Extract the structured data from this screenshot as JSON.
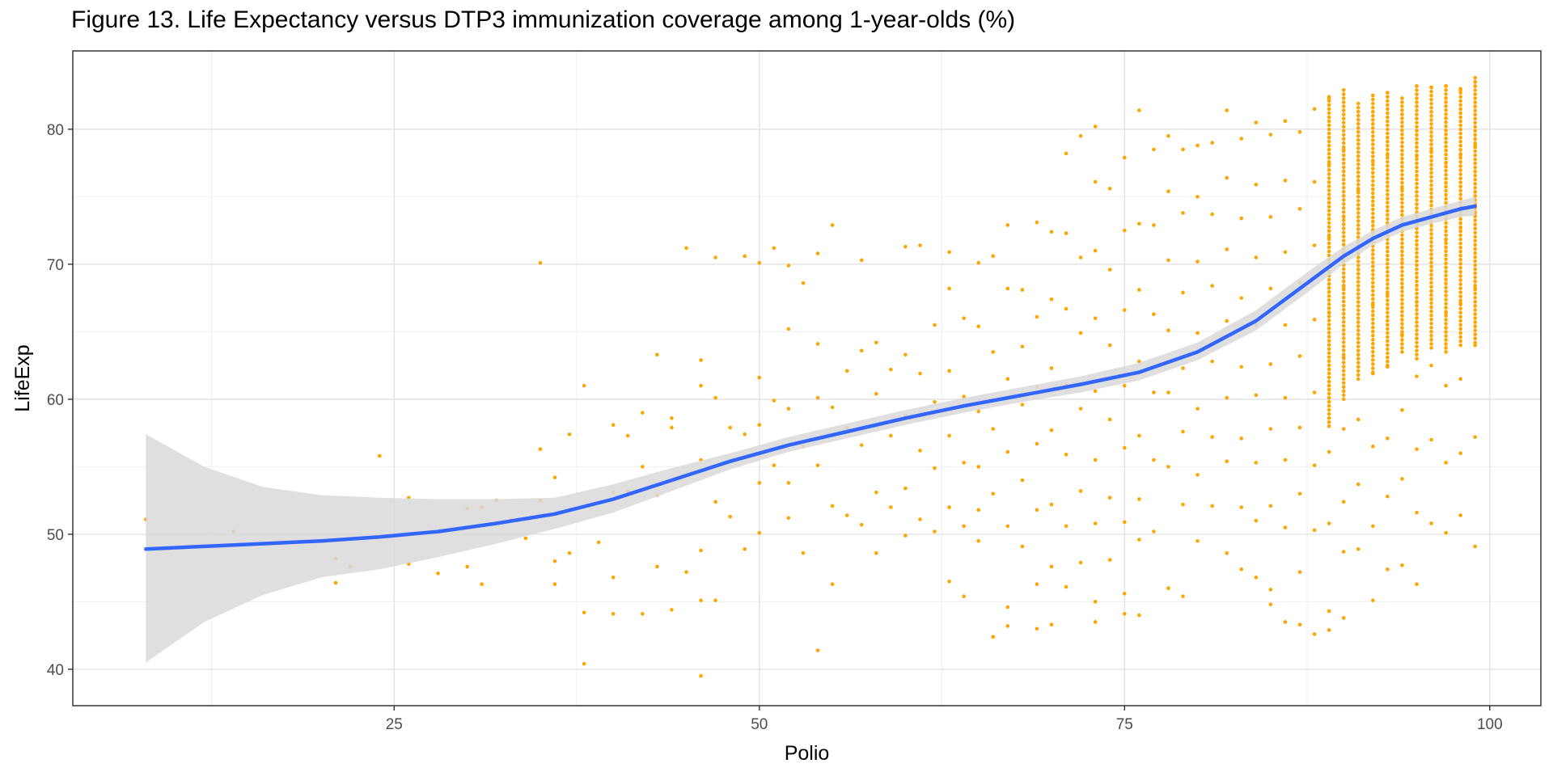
{
  "chart_data": {
    "type": "scatter",
    "title": "Figure 13. Life Expectancy versus DTP3 immunization coverage among 1-year-olds (%)",
    "xlabel": "Polio",
    "ylabel": "LifeExp",
    "xlim": [
      3,
      103.5
    ],
    "ylim": [
      37.3,
      85.8
    ],
    "x_ticks": [
      25,
      50,
      75,
      100
    ],
    "y_ticks": [
      40,
      50,
      60,
      70,
      80
    ],
    "x_minor_ticks": [
      12.5,
      37.5,
      62.5,
      87.5
    ],
    "y_minor_ticks": [
      45,
      55,
      65,
      75
    ],
    "grid": true,
    "legend": "none",
    "point_color": "#FFA500",
    "smooth_color": "#3366FF",
    "ribbon_color": "#D9D9D9",
    "smooth_x": [
      8,
      12,
      16,
      20,
      24,
      28,
      32,
      36,
      40,
      44,
      48,
      52,
      56,
      60,
      64,
      68,
      72,
      76,
      80,
      84,
      88,
      90,
      92,
      94,
      96,
      98,
      99
    ],
    "smooth_y": [
      48.9,
      49.1,
      49.3,
      49.5,
      49.8,
      50.2,
      50.8,
      51.5,
      52.6,
      54.0,
      55.4,
      56.6,
      57.6,
      58.6,
      59.5,
      60.3,
      61.1,
      62.0,
      63.5,
      65.8,
      69.0,
      70.6,
      71.9,
      72.9,
      73.5,
      74.1,
      74.3
    ],
    "smooth_lower": [
      40.5,
      43.5,
      45.5,
      46.8,
      47.4,
      48.3,
      49.3,
      50.4,
      51.6,
      53.2,
      54.8,
      56.1,
      57.1,
      58.1,
      59.0,
      59.8,
      60.5,
      61.4,
      62.9,
      65.1,
      68.3,
      70.0,
      71.4,
      72.4,
      73.0,
      73.5,
      73.6
    ],
    "smooth_upper": [
      57.4,
      55.0,
      53.5,
      52.9,
      52.7,
      52.6,
      52.6,
      52.7,
      53.7,
      54.9,
      56.0,
      57.2,
      58.2,
      59.2,
      60.1,
      60.9,
      61.7,
      62.7,
      64.2,
      66.6,
      69.8,
      71.3,
      72.5,
      73.5,
      74.1,
      74.7,
      75.0
    ],
    "points": [
      [
        8,
        51.1
      ],
      [
        14,
        50.2
      ],
      [
        24,
        55.8
      ],
      [
        26,
        52.7
      ],
      [
        26,
        47.8
      ],
      [
        28,
        47.1
      ],
      [
        21,
        48.2
      ],
      [
        21,
        46.4
      ],
      [
        22,
        47.6
      ],
      [
        35,
        70.1
      ],
      [
        38,
        40.4
      ],
      [
        38,
        44.2
      ],
      [
        38,
        61.0
      ],
      [
        36,
        54.2
      ],
      [
        30,
        51.9
      ],
      [
        30,
        47.6
      ],
      [
        31,
        52.0
      ],
      [
        31,
        46.3
      ],
      [
        32,
        52.5
      ],
      [
        33,
        51.1
      ],
      [
        34,
        49.7
      ],
      [
        35,
        56.3
      ],
      [
        35,
        52.5
      ],
      [
        36,
        48.0
      ],
      [
        36,
        46.3
      ],
      [
        37,
        57.4
      ],
      [
        37,
        48.6
      ],
      [
        39,
        49.4
      ],
      [
        40,
        58.1
      ],
      [
        40,
        53.1
      ],
      [
        40,
        46.8
      ],
      [
        40,
        44.1
      ],
      [
        41,
        57.3
      ],
      [
        41,
        53.2
      ],
      [
        42,
        59.0
      ],
      [
        42,
        55.0
      ],
      [
        42,
        44.1
      ],
      [
        43,
        63.3
      ],
      [
        43,
        52.9
      ],
      [
        43,
        47.6
      ],
      [
        44,
        58.6
      ],
      [
        44,
        57.9
      ],
      [
        44,
        44.4
      ],
      [
        45,
        71.2
      ],
      [
        45,
        47.2
      ],
      [
        46,
        62.9
      ],
      [
        46,
        61.0
      ],
      [
        46,
        55.5
      ],
      [
        46,
        48.8
      ],
      [
        46,
        45.1
      ],
      [
        46,
        39.5
      ],
      [
        47,
        70.5
      ],
      [
        47,
        60.1
      ],
      [
        47,
        52.4
      ],
      [
        47,
        45.1
      ],
      [
        48,
        57.9
      ],
      [
        48,
        51.3
      ],
      [
        49,
        70.6
      ],
      [
        49,
        57.4
      ],
      [
        49,
        48.9
      ],
      [
        50,
        70.1
      ],
      [
        50,
        61.6
      ],
      [
        50,
        58.1
      ],
      [
        50,
        53.8
      ],
      [
        50,
        50.1
      ],
      [
        51,
        71.2
      ],
      [
        51,
        59.9
      ],
      [
        51,
        55.1
      ],
      [
        52,
        69.9
      ],
      [
        52,
        65.2
      ],
      [
        52,
        59.3
      ],
      [
        52,
        53.8
      ],
      [
        52,
        51.2
      ],
      [
        53,
        68.6
      ],
      [
        53,
        56.5
      ],
      [
        53,
        48.6
      ],
      [
        54,
        70.8
      ],
      [
        54,
        64.1
      ],
      [
        54,
        60.1
      ],
      [
        54,
        55.1
      ],
      [
        54,
        41.4
      ],
      [
        55,
        72.9
      ],
      [
        55,
        59.4
      ],
      [
        55,
        52.1
      ],
      [
        55,
        46.3
      ],
      [
        56,
        62.1
      ],
      [
        56,
        57.9
      ],
      [
        56,
        51.4
      ],
      [
        57,
        70.3
      ],
      [
        57,
        63.6
      ],
      [
        57,
        56.6
      ],
      [
        57,
        50.7
      ],
      [
        58,
        64.2
      ],
      [
        58,
        60.4
      ],
      [
        58,
        53.1
      ],
      [
        58,
        48.6
      ],
      [
        59,
        62.2
      ],
      [
        59,
        57.3
      ],
      [
        59,
        52.0
      ],
      [
        60,
        71.3
      ],
      [
        60,
        63.3
      ],
      [
        60,
        58.8
      ],
      [
        60,
        53.4
      ],
      [
        60,
        49.9
      ],
      [
        61,
        71.4
      ],
      [
        61,
        61.9
      ],
      [
        61,
        56.2
      ],
      [
        61,
        51.1
      ],
      [
        62,
        65.5
      ],
      [
        62,
        59.8
      ],
      [
        62,
        54.9
      ],
      [
        62,
        50.2
      ],
      [
        63,
        70.9
      ],
      [
        63,
        68.2
      ],
      [
        63,
        62.1
      ],
      [
        63,
        57.3
      ],
      [
        63,
        52.0
      ],
      [
        63,
        46.5
      ],
      [
        64,
        66.0
      ],
      [
        64,
        60.2
      ],
      [
        64,
        55.3
      ],
      [
        64,
        50.6
      ],
      [
        64,
        45.4
      ],
      [
        65,
        70.1
      ],
      [
        65,
        65.4
      ],
      [
        65,
        59.1
      ],
      [
        65,
        55.0
      ],
      [
        65,
        51.8
      ],
      [
        65,
        49.5
      ],
      [
        66,
        70.6
      ],
      [
        66,
        63.5
      ],
      [
        66,
        57.8
      ],
      [
        66,
        53.0
      ],
      [
        66,
        42.4
      ],
      [
        67,
        72.9
      ],
      [
        67,
        68.2
      ],
      [
        67,
        61.5
      ],
      [
        67,
        56.1
      ],
      [
        67,
        50.6
      ],
      [
        67,
        44.6
      ],
      [
        67,
        43.2
      ],
      [
        68,
        68.1
      ],
      [
        68,
        63.9
      ],
      [
        68,
        59.6
      ],
      [
        68,
        54.0
      ],
      [
        68,
        49.1
      ],
      [
        69,
        73.1
      ],
      [
        69,
        66.1
      ],
      [
        69,
        60.9
      ],
      [
        69,
        56.7
      ],
      [
        69,
        51.8
      ],
      [
        69,
        46.3
      ],
      [
        69,
        43.0
      ],
      [
        70,
        72.4
      ],
      [
        70,
        67.4
      ],
      [
        70,
        62.3
      ],
      [
        70,
        57.7
      ],
      [
        70,
        52.2
      ],
      [
        70,
        47.6
      ],
      [
        70,
        43.3
      ],
      [
        71,
        78.2
      ],
      [
        71,
        72.3
      ],
      [
        71,
        66.7
      ],
      [
        71,
        61.1
      ],
      [
        71,
        55.9
      ],
      [
        71,
        50.6
      ],
      [
        71,
        46.1
      ],
      [
        72,
        79.5
      ],
      [
        72,
        70.5
      ],
      [
        72,
        64.9
      ],
      [
        72,
        59.3
      ],
      [
        72,
        53.2
      ],
      [
        72,
        47.9
      ],
      [
        73,
        80.2
      ],
      [
        73,
        76.1
      ],
      [
        73,
        71.0
      ],
      [
        73,
        66.0
      ],
      [
        73,
        60.6
      ],
      [
        73,
        55.5
      ],
      [
        73,
        50.8
      ],
      [
        73,
        45.0
      ],
      [
        73,
        43.5
      ],
      [
        74,
        75.6
      ],
      [
        74,
        69.6
      ],
      [
        74,
        64.0
      ],
      [
        74,
        58.5
      ],
      [
        74,
        52.7
      ],
      [
        74,
        48.1
      ],
      [
        75,
        77.9
      ],
      [
        75,
        72.5
      ],
      [
        75,
        66.6
      ],
      [
        75,
        61.0
      ],
      [
        75,
        56.4
      ],
      [
        75,
        50.9
      ],
      [
        75,
        45.6
      ],
      [
        75,
        44.1
      ],
      [
        76,
        81.4
      ],
      [
        76,
        73.0
      ],
      [
        76,
        68.1
      ],
      [
        76,
        62.8
      ],
      [
        76,
        57.3
      ],
      [
        76,
        52.6
      ],
      [
        76,
        49.6
      ],
      [
        76,
        44.0
      ],
      [
        77,
        78.5
      ],
      [
        77,
        72.9
      ],
      [
        77,
        66.3
      ],
      [
        77,
        60.5
      ],
      [
        77,
        55.5
      ],
      [
        77,
        50.2
      ],
      [
        78,
        79.5
      ],
      [
        78,
        75.4
      ],
      [
        78,
        70.3
      ],
      [
        78,
        65.1
      ],
      [
        78,
        60.5
      ],
      [
        78,
        55.0
      ],
      [
        78,
        46.0
      ],
      [
        79,
        78.5
      ],
      [
        79,
        73.8
      ],
      [
        79,
        67.9
      ],
      [
        79,
        62.3
      ],
      [
        79,
        57.6
      ],
      [
        79,
        52.2
      ],
      [
        79,
        45.4
      ],
      [
        80,
        78.8
      ],
      [
        80,
        75.0
      ],
      [
        80,
        70.2
      ],
      [
        80,
        64.9
      ],
      [
        80,
        59.3
      ],
      [
        80,
        54.4
      ],
      [
        80,
        49.5
      ],
      [
        81,
        79.0
      ],
      [
        81,
        73.7
      ],
      [
        81,
        68.4
      ],
      [
        81,
        62.8
      ],
      [
        81,
        57.2
      ],
      [
        81,
        52.1
      ],
      [
        82,
        81.4
      ],
      [
        82,
        76.4
      ],
      [
        82,
        71.1
      ],
      [
        82,
        65.8
      ],
      [
        82,
        60.1
      ],
      [
        82,
        55.4
      ],
      [
        82,
        48.6
      ],
      [
        83,
        79.3
      ],
      [
        83,
        73.4
      ],
      [
        83,
        67.5
      ],
      [
        83,
        62.4
      ],
      [
        83,
        57.1
      ],
      [
        83,
        52.0
      ],
      [
        83,
        47.4
      ],
      [
        84,
        80.5
      ],
      [
        84,
        75.9
      ],
      [
        84,
        70.5
      ],
      [
        84,
        65.5
      ],
      [
        84,
        60.3
      ],
      [
        84,
        55.3
      ],
      [
        84,
        51.0
      ],
      [
        84,
        46.8
      ],
      [
        85,
        79.6
      ],
      [
        85,
        73.5
      ],
      [
        85,
        68.2
      ],
      [
        85,
        62.6
      ],
      [
        85,
        57.8
      ],
      [
        85,
        52.1
      ],
      [
        85,
        45.9
      ],
      [
        85,
        44.8
      ],
      [
        86,
        80.6
      ],
      [
        86,
        76.2
      ],
      [
        86,
        70.9
      ],
      [
        86,
        65.5
      ],
      [
        86,
        60.1
      ],
      [
        86,
        55.5
      ],
      [
        86,
        50.5
      ],
      [
        86,
        43.5
      ],
      [
        87,
        79.8
      ],
      [
        87,
        74.1
      ],
      [
        87,
        68.6
      ],
      [
        87,
        63.2
      ],
      [
        87,
        57.9
      ],
      [
        87,
        53.0
      ],
      [
        87,
        47.2
      ],
      [
        87,
        43.3
      ],
      [
        88,
        81.5
      ],
      [
        88,
        76.1
      ],
      [
        88,
        71.4
      ],
      [
        88,
        65.9
      ],
      [
        88,
        60.5
      ],
      [
        88,
        55.1
      ],
      [
        88,
        50.3
      ],
      [
        88,
        42.6
      ],
      [
        89,
        82.3
      ],
      [
        89,
        77.4
      ],
      [
        89,
        72.0
      ],
      [
        89,
        66.4
      ],
      [
        89,
        61.0
      ],
      [
        89,
        56.1
      ],
      [
        89,
        50.8
      ],
      [
        89,
        44.3
      ],
      [
        89,
        42.9
      ],
      [
        90,
        82.9
      ],
      [
        90,
        78.5
      ],
      [
        90,
        73.5
      ],
      [
        90,
        68.3
      ],
      [
        90,
        63.1
      ],
      [
        90,
        57.8
      ],
      [
        90,
        52.4
      ],
      [
        90,
        48.7
      ],
      [
        90,
        43.8
      ],
      [
        91,
        81.0
      ],
      [
        91,
        75.5
      ],
      [
        91,
        69.6
      ],
      [
        91,
        64.2
      ],
      [
        91,
        58.5
      ],
      [
        91,
        53.7
      ],
      [
        91,
        48.9
      ],
      [
        92,
        82.5
      ],
      [
        92,
        77.6
      ],
      [
        92,
        72.4
      ],
      [
        92,
        67.0
      ],
      [
        92,
        61.9
      ],
      [
        92,
        56.5
      ],
      [
        92,
        50.6
      ],
      [
        92,
        45.1
      ],
      [
        93,
        82.7
      ],
      [
        93,
        78.1
      ],
      [
        93,
        72.9
      ],
      [
        93,
        67.8
      ],
      [
        93,
        62.4
      ],
      [
        93,
        57.1
      ],
      [
        93,
        52.8
      ],
      [
        93,
        47.4
      ],
      [
        94,
        81.1
      ],
      [
        94,
        75.6
      ],
      [
        94,
        70.1
      ],
      [
        94,
        64.8
      ],
      [
        94,
        59.2
      ],
      [
        94,
        54.1
      ],
      [
        94,
        47.7
      ],
      [
        95,
        83.2
      ],
      [
        95,
        78.0
      ],
      [
        95,
        72.7
      ],
      [
        95,
        67.2
      ],
      [
        95,
        61.7
      ],
      [
        95,
        56.3
      ],
      [
        95,
        51.6
      ],
      [
        95,
        46.3
      ],
      [
        96,
        83.1
      ],
      [
        96,
        78.4
      ],
      [
        96,
        73.1
      ],
      [
        96,
        68.0
      ],
      [
        96,
        62.5
      ],
      [
        96,
        57.0
      ],
      [
        96,
        50.8
      ],
      [
        97,
        83.2
      ],
      [
        97,
        77.5
      ],
      [
        97,
        71.8
      ],
      [
        97,
        66.4
      ],
      [
        97,
        61.0
      ],
      [
        97,
        55.3
      ],
      [
        97,
        50.1
      ],
      [
        98,
        82.9
      ],
      [
        98,
        78.1
      ],
      [
        98,
        72.7
      ],
      [
        98,
        67.1
      ],
      [
        98,
        61.5
      ],
      [
        98,
        56.0
      ],
      [
        98,
        51.4
      ],
      [
        99,
        83.8
      ],
      [
        99,
        78.8
      ],
      [
        99,
        73.6
      ],
      [
        99,
        68.2
      ],
      [
        99,
        64.0
      ],
      [
        99,
        57.2
      ],
      [
        99,
        49.1
      ]
    ],
    "dense_columns": [
      {
        "x": 89,
        "y_min": 58.0,
        "y_max": 82.4
      },
      {
        "x": 90,
        "y_min": 60.0,
        "y_max": 82.6
      },
      {
        "x": 91,
        "y_min": 61.5,
        "y_max": 81.9
      },
      {
        "x": 92,
        "y_min": 62.0,
        "y_max": 82.5
      },
      {
        "x": 93,
        "y_min": 62.5,
        "y_max": 82.7
      },
      {
        "x": 94,
        "y_min": 63.5,
        "y_max": 82.3
      },
      {
        "x": 95,
        "y_min": 63.0,
        "y_max": 83.2
      },
      {
        "x": 96,
        "y_min": 63.8,
        "y_max": 83.1
      },
      {
        "x": 97,
        "y_min": 63.5,
        "y_max": 83.2
      },
      {
        "x": 98,
        "y_min": 64.0,
        "y_max": 83.0
      },
      {
        "x": 99,
        "y_min": 64.2,
        "y_max": 83.8
      }
    ]
  }
}
